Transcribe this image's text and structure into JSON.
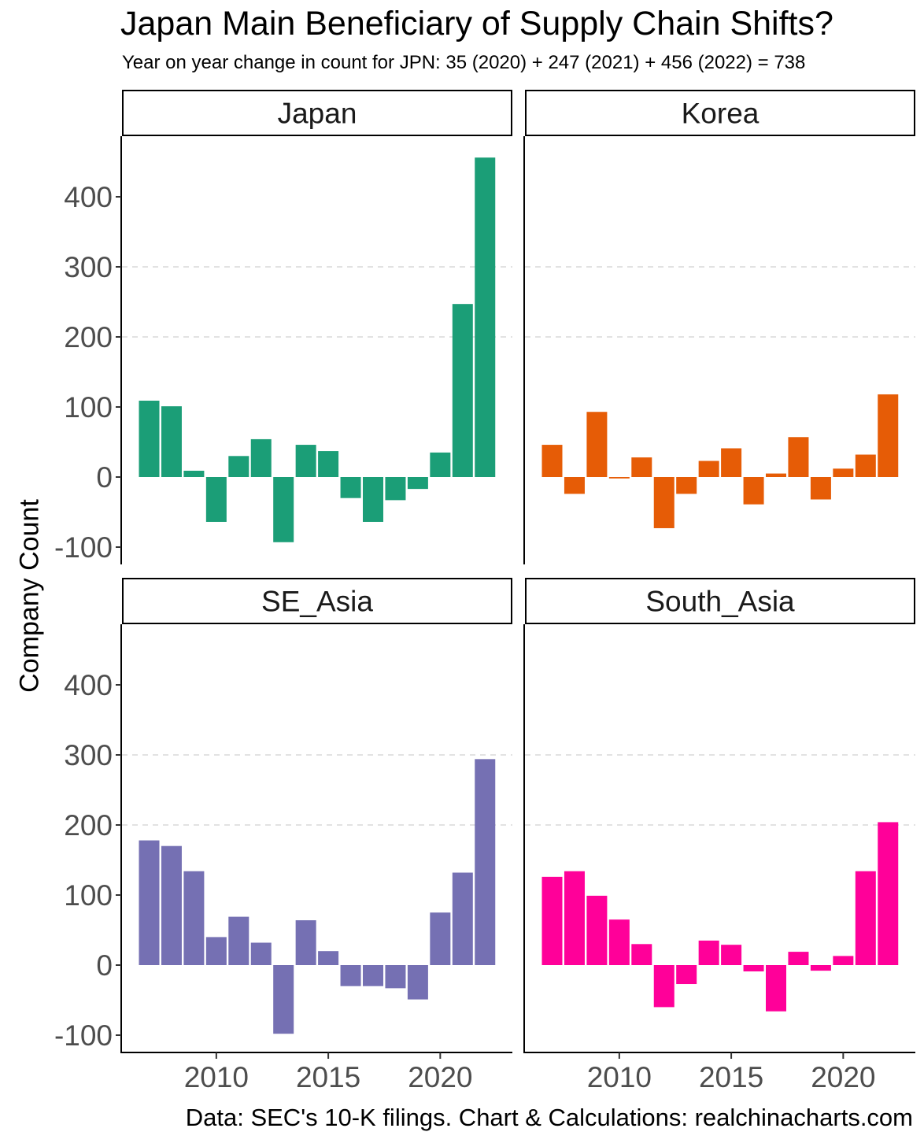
{
  "chart_data": {
    "type": "bar",
    "title": "Japan Main Beneficiary of Supply Chain Shifts?",
    "subtitle": "Year on year change in count for JPN: 35 (2020) + 247 (2021) + 456 (2022) = 738",
    "ylabel": "Company Count",
    "xlabel": "",
    "caption": "Data: SEC's 10-K filings. Chart & Calculations: realchinacharts.com",
    "x": [
      2007,
      2008,
      2009,
      2010,
      2011,
      2012,
      2013,
      2014,
      2015,
      2016,
      2017,
      2018,
      2019,
      2020,
      2021,
      2022
    ],
    "ylim": [
      -120,
      480
    ],
    "yticks": [
      -100,
      0,
      100,
      200,
      300,
      400
    ],
    "ytick_labels": [
      "-100",
      "0",
      "100",
      "200",
      "300",
      "400"
    ],
    "xticks": [
      2010,
      2015,
      2020
    ],
    "xtick_labels": [
      "2010",
      "2015",
      "2020"
    ],
    "grid": "dashed horizontal at 200 and 300",
    "legend": "none",
    "facets": [
      {
        "name": "Japan",
        "color": "#1B9E77",
        "values": [
          109,
          101,
          9,
          -64,
          30,
          54,
          -93,
          46,
          37,
          -30,
          -64,
          -33,
          -17,
          35,
          247,
          456
        ]
      },
      {
        "name": "Korea",
        "color": "#E65C06",
        "values": [
          46,
          -24,
          93,
          -2,
          28,
          -73,
          -24,
          23,
          41,
          -39,
          5,
          57,
          -32,
          12,
          32,
          118
        ]
      },
      {
        "name": "SE_Asia",
        "color": "#7570B3",
        "values": [
          178,
          170,
          134,
          40,
          69,
          32,
          -98,
          64,
          20,
          -30,
          -30,
          -33,
          -49,
          75,
          132,
          294
        ]
      },
      {
        "name": "South_Asia",
        "color": "#FF0099",
        "values": [
          126,
          134,
          99,
          65,
          30,
          -60,
          -27,
          35,
          29,
          -9,
          -66,
          19,
          -8,
          13,
          134,
          204
        ]
      }
    ]
  }
}
